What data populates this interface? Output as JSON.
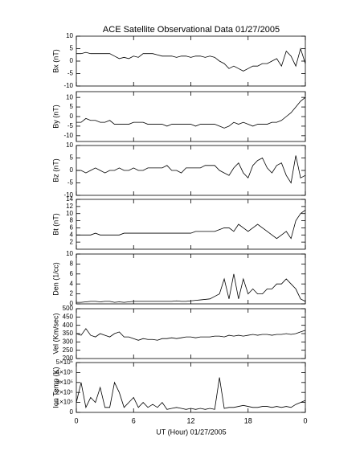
{
  "chart_data": {
    "type": "line",
    "title": "ACE Satellite Observational Data   01/27/2005",
    "xlabel": "UT (Hour)   01/27/2005",
    "xlim": [
      0,
      24
    ],
    "xticks": [
      0,
      6,
      12,
      18,
      {
        "value": 24,
        "label": "0"
      }
    ],
    "color": "#000000",
    "x": [
      0,
      0.5,
      1,
      1.5,
      2,
      2.5,
      3,
      3.5,
      4,
      4.5,
      5,
      5.5,
      6,
      6.5,
      7,
      7.5,
      8,
      8.5,
      9,
      9.5,
      10,
      10.5,
      11,
      11.5,
      12,
      12.5,
      13,
      13.5,
      14,
      14.5,
      15,
      15.5,
      16,
      16.5,
      17,
      17.5,
      18,
      18.5,
      19,
      19.5,
      20,
      20.5,
      21,
      21.5,
      22,
      22.5,
      23,
      23.5,
      24
    ],
    "panels": [
      {
        "ylabel": "Bx (nT)",
        "ylim": [
          -10,
          10
        ],
        "yticks": [
          -10,
          -5,
          0,
          5,
          10
        ],
        "values": [
          3,
          3,
          3.5,
          3,
          3,
          3,
          3,
          3,
          2,
          1,
          1.5,
          1,
          2,
          1.5,
          3,
          3,
          3,
          2.5,
          2,
          2,
          2,
          1.5,
          2,
          2,
          1.5,
          2,
          2,
          1.5,
          2,
          1.5,
          0,
          -1,
          -3,
          -2,
          -3,
          -4,
          -3,
          -2,
          -2,
          -1,
          -1,
          0,
          1,
          -2,
          4,
          2,
          -2,
          5,
          -1
        ]
      },
      {
        "ylabel": "By (nT)",
        "ylim": [
          -13,
          13
        ],
        "yticks": [
          -10,
          -5,
          0,
          5,
          10
        ],
        "values": [
          -3,
          -3,
          -1,
          -2,
          -2,
          -3,
          -3,
          -2,
          -4,
          -4,
          -4,
          -4,
          -3,
          -3,
          -3,
          -4,
          -4,
          -4,
          -4,
          -5,
          -4,
          -4,
          -4,
          -4,
          -4,
          -5,
          -4,
          -4,
          -4,
          -4,
          -5,
          -6,
          -5,
          -3,
          -4,
          -3,
          -4,
          -5,
          -4,
          -4,
          -4,
          -3,
          -3,
          -2,
          0,
          2,
          5,
          8,
          10
        ]
      },
      {
        "ylabel": "Bz (nT)",
        "ylim": [
          -10,
          10
        ],
        "yticks": [
          -10,
          -5,
          0,
          5,
          10
        ],
        "values": [
          0,
          0,
          -1,
          0,
          1,
          0,
          -1,
          0,
          0,
          1,
          0,
          0,
          1,
          0,
          0,
          1,
          1,
          1,
          1,
          2,
          0,
          0,
          -1,
          1,
          1,
          1,
          1,
          2,
          2,
          2,
          0,
          -1,
          -2,
          1,
          3,
          -1,
          -3,
          2,
          4,
          5,
          1,
          -1,
          2,
          3,
          -2,
          -5,
          6,
          -3,
          -2
        ]
      },
      {
        "ylabel": "Bt (nT)",
        "ylim": [
          0,
          14
        ],
        "yticks": [
          2,
          4,
          6,
          8,
          10,
          12,
          14
        ],
        "values": [
          4,
          4,
          4,
          4,
          4.5,
          4,
          4,
          4,
          4,
          4,
          4.5,
          4.5,
          4.5,
          4.5,
          4.5,
          4.5,
          4.5,
          4.5,
          4.5,
          4.5,
          4.5,
          4.5,
          4.5,
          4.5,
          4.5,
          5,
          5,
          5,
          5,
          5,
          5.5,
          6,
          6,
          5,
          7,
          6,
          5,
          6,
          7,
          6,
          5,
          4,
          3,
          4,
          5,
          3,
          8,
          10,
          11
        ]
      },
      {
        "ylabel": "Den (1/cc)",
        "ylim": [
          0,
          10
        ],
        "yticks": [
          0,
          2,
          4,
          6,
          8,
          10
        ],
        "values": [
          0.3,
          0.3,
          0.4,
          0.5,
          0.5,
          0.4,
          0.5,
          0.5,
          0.3,
          0.4,
          0.3,
          0.4,
          0.5,
          0.5,
          0.5,
          0.5,
          0.5,
          0.5,
          0.5,
          0.5,
          0.5,
          0.6,
          0.5,
          0.5,
          0.6,
          0.7,
          0.8,
          0.9,
          1,
          1.5,
          2,
          5,
          1,
          6,
          1,
          5,
          2,
          3,
          2,
          2,
          3,
          3,
          4,
          4,
          5,
          4,
          3,
          1,
          0.5
        ]
      },
      {
        "ylabel": "Vel (Km/sec)",
        "ylim": [
          200,
          500
        ],
        "yticks": [
          200,
          250,
          300,
          350,
          400,
          450,
          500
        ],
        "values": [
          350,
          340,
          380,
          340,
          330,
          350,
          340,
          330,
          350,
          360,
          330,
          330,
          320,
          310,
          320,
          315,
          315,
          310,
          320,
          320,
          325,
          320,
          325,
          330,
          330,
          325,
          330,
          330,
          330,
          335,
          335,
          330,
          340,
          335,
          340,
          335,
          340,
          345,
          340,
          345,
          345,
          340,
          345,
          345,
          350,
          345,
          350,
          360,
          370
        ]
      },
      {
        "ylabel": "Ion Temp (K)",
        "ylim": [
          0,
          500000
        ],
        "yticks": [
          0,
          {
            "value": 100000,
            "label": "1×10⁵"
          },
          {
            "value": 200000,
            "label": "2×10⁵"
          },
          {
            "value": 300000,
            "label": "3×10⁵"
          },
          {
            "value": 400000,
            "label": "4×10⁵"
          },
          {
            "value": 500000,
            "label": "5×10⁵"
          }
        ],
        "values": [
          100000,
          300000,
          50000,
          150000,
          100000,
          250000,
          50000,
          50000,
          300000,
          200000,
          50000,
          100000,
          150000,
          50000,
          100000,
          50000,
          80000,
          50000,
          100000,
          30000,
          40000,
          50000,
          40000,
          30000,
          40000,
          30000,
          40000,
          30000,
          40000,
          30000,
          350000,
          40000,
          50000,
          50000,
          60000,
          70000,
          60000,
          50000,
          50000,
          60000,
          60000,
          50000,
          60000,
          50000,
          60000,
          50000,
          80000,
          100000,
          120000
        ]
      }
    ]
  }
}
